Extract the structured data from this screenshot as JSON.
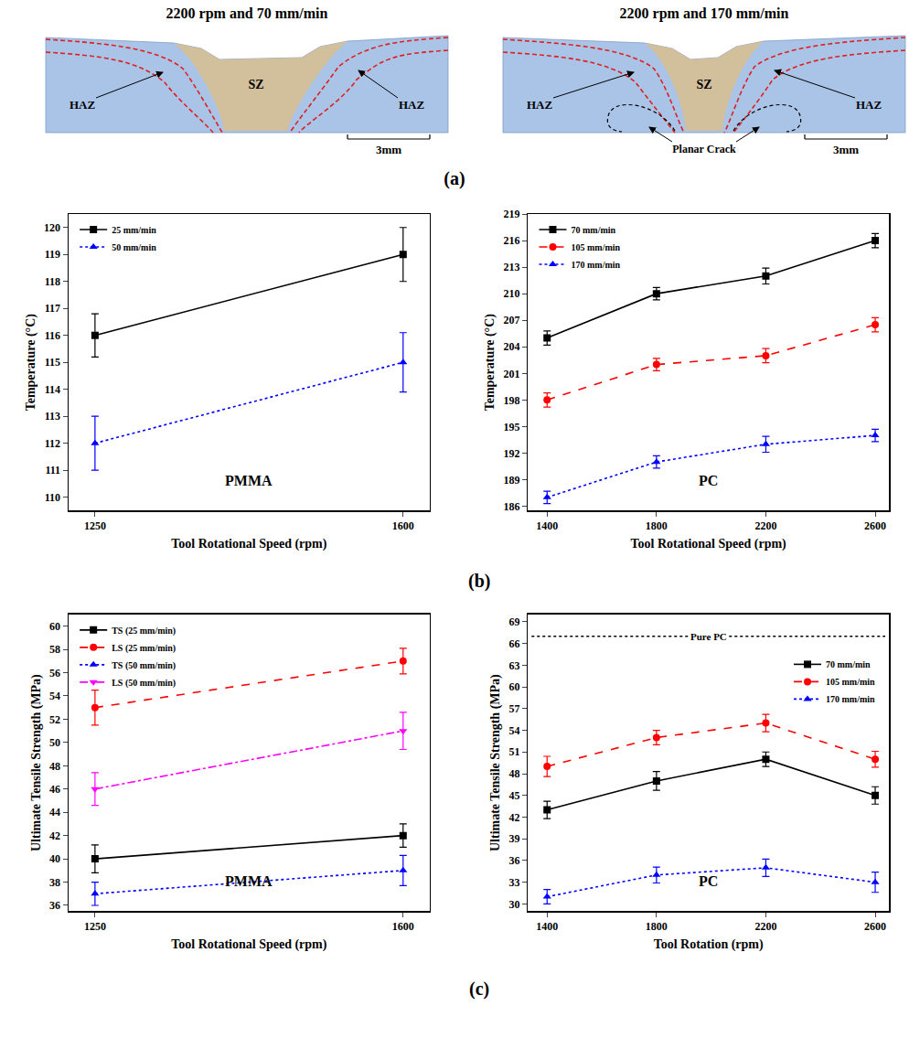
{
  "figure": {
    "panel_labels": [
      "(a)",
      "(b)",
      "(c)"
    ]
  },
  "images": [
    {
      "title": "2200 rpm and 70 mm/min",
      "zone_labels": [
        "HAZ",
        "SZ",
        "HAZ"
      ],
      "scale_bar": "3mm"
    },
    {
      "title": "2200 rpm and 170 mm/min",
      "zone_labels": [
        "HAZ",
        "SZ",
        "HAZ"
      ],
      "defect_label": "Planar Crack",
      "scale_bar": "3mm"
    }
  ],
  "chart_data": [
    {
      "type": "line",
      "material_label": "PMMA",
      "x_label": "Tool Rotational Speed (rpm)",
      "y_label": "Temperature (°C)",
      "x": [
        1250,
        1600
      ],
      "xlim": [
        1220,
        1630
      ],
      "xticks": [
        1250,
        1600
      ],
      "ylim": [
        109.5,
        120.5
      ],
      "yticks": [
        110,
        111,
        112,
        113,
        114,
        115,
        116,
        117,
        118,
        119,
        120
      ],
      "grid": false,
      "legend": "top left",
      "series": [
        {
          "name": "25 mm/min",
          "color": "#000000",
          "marker": "square",
          "line_style": "solid",
          "values": [
            116,
            119
          ],
          "errors": [
            0.8,
            1.0
          ]
        },
        {
          "name": "50 mm/min",
          "color": "#0000ff",
          "marker": "triangle-up",
          "line_style": "dot",
          "values": [
            112,
            115
          ],
          "errors": [
            1.0,
            1.1
          ]
        }
      ]
    },
    {
      "type": "line",
      "material_label": "PC",
      "x_label": "Tool Rotational Speed (rpm)",
      "y_label": "Temperature (°C)",
      "x": [
        1400,
        1800,
        2200,
        2600
      ],
      "xlim": [
        1330,
        2650
      ],
      "xticks": [
        1400,
        1800,
        2200,
        2600
      ],
      "ylim": [
        185.5,
        219
      ],
      "yticks": [
        186,
        189,
        192,
        195,
        198,
        201,
        204,
        207,
        210,
        213,
        216,
        219
      ],
      "grid": false,
      "legend": "top left",
      "series": [
        {
          "name": "70 mm/min",
          "color": "#000000",
          "marker": "square",
          "line_style": "solid",
          "values": [
            205,
            210,
            212,
            216
          ],
          "errors": [
            0.8,
            0.7,
            0.9,
            0.8
          ]
        },
        {
          "name": "105 mm/min",
          "color": "#ff0000",
          "marker": "circle",
          "line_style": "dash",
          "values": [
            198,
            202,
            203,
            206.5
          ],
          "errors": [
            0.8,
            0.7,
            0.8,
            0.8
          ]
        },
        {
          "name": "170 mm/min",
          "color": "#0000ff",
          "marker": "triangle-up",
          "line_style": "dot",
          "values": [
            187,
            191,
            193,
            194
          ],
          "errors": [
            0.7,
            0.7,
            0.9,
            0.7
          ]
        }
      ]
    },
    {
      "type": "line",
      "material_label": "PMMA",
      "x_label": "Tool Rotational Speed (rpm)",
      "y_label": "Ultimate Tensile Strength (MPa)",
      "x": [
        1250,
        1600
      ],
      "xlim": [
        1220,
        1630
      ],
      "xticks": [
        1250,
        1600
      ],
      "ylim": [
        35.5,
        61
      ],
      "yticks": [
        36,
        38,
        40,
        42,
        44,
        46,
        48,
        50,
        52,
        54,
        56,
        58,
        60
      ],
      "grid": false,
      "legend": "top left",
      "series": [
        {
          "name": "TS (25 mm/min)",
          "color": "#000000",
          "marker": "square",
          "line_style": "solid",
          "values": [
            40,
            42
          ],
          "errors": [
            1.2,
            1.0
          ]
        },
        {
          "name": "LS (25 mm/min)",
          "color": "#ff0000",
          "marker": "circle",
          "line_style": "dash",
          "values": [
            53,
            57
          ],
          "errors": [
            1.5,
            1.1
          ]
        },
        {
          "name": "TS (50 mm/min)",
          "color": "#0000ff",
          "marker": "triangle-up",
          "line_style": "dot",
          "values": [
            37,
            39
          ],
          "errors": [
            1.0,
            1.3
          ]
        },
        {
          "name": "LS (50 mm/min)",
          "color": "#ff00ff",
          "marker": "triangle-down",
          "line_style": "dashdot",
          "values": [
            46,
            51
          ],
          "errors": [
            1.4,
            1.6
          ]
        }
      ]
    },
    {
      "type": "line",
      "material_label": "PC",
      "x_label": "Tool Rotation (rpm)",
      "y_label": "Ultimate Tensile Strength (MPa)",
      "x": [
        1400,
        1800,
        2200,
        2600
      ],
      "xlim": [
        1330,
        2650
      ],
      "xticks": [
        1400,
        1800,
        2200,
        2600
      ],
      "ylim": [
        29,
        70
      ],
      "yticks": [
        30,
        33,
        36,
        39,
        42,
        45,
        48,
        51,
        54,
        57,
        60,
        63,
        66,
        69
      ],
      "grid": false,
      "legend": "top right",
      "reference": {
        "label": "Pure PC",
        "value": 67
      },
      "series": [
        {
          "name": "70 mm/min",
          "color": "#000000",
          "marker": "square",
          "line_style": "solid",
          "values": [
            43,
            47,
            50,
            45
          ],
          "errors": [
            1.2,
            1.3,
            1.0,
            1.2
          ]
        },
        {
          "name": "105 mm/min",
          "color": "#ff0000",
          "marker": "circle",
          "line_style": "dash",
          "values": [
            49,
            53,
            55,
            50
          ],
          "errors": [
            1.4,
            1.0,
            1.2,
            1.1
          ]
        },
        {
          "name": "170 mm/min",
          "color": "#0000ff",
          "marker": "triangle-up",
          "line_style": "dot",
          "values": [
            31,
            34,
            35,
            33
          ],
          "errors": [
            1.0,
            1.1,
            1.2,
            1.4
          ]
        }
      ]
    }
  ]
}
